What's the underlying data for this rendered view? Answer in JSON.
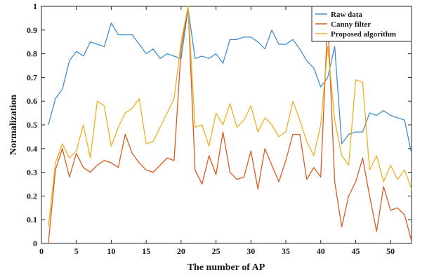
{
  "chart_data": {
    "type": "line",
    "xlabel": "The number of AP",
    "ylabel": "Normalization",
    "xlim": [
      0,
      53
    ],
    "ylim": [
      0,
      1
    ],
    "x_ticks": [
      0,
      5,
      10,
      15,
      20,
      25,
      30,
      35,
      40,
      45,
      50
    ],
    "y_ticks": [
      0,
      0.1,
      0.2,
      0.3,
      0.4,
      0.5,
      0.6,
      0.7,
      0.8,
      0.9,
      1
    ],
    "y_tick_labels": [
      "0",
      "0.1",
      "0.2",
      "0.3",
      "0.4",
      "0.5",
      "0.6",
      "0.7",
      "0.8",
      "0.9",
      "1"
    ],
    "grid": false,
    "legend_position": "top-right",
    "x": [
      1,
      2,
      3,
      4,
      5,
      6,
      7,
      8,
      9,
      10,
      11,
      12,
      13,
      14,
      15,
      16,
      17,
      18,
      19,
      20,
      21,
      22,
      23,
      24,
      25,
      26,
      27,
      28,
      29,
      30,
      31,
      32,
      33,
      34,
      35,
      36,
      37,
      38,
      39,
      40,
      41,
      42,
      43,
      44,
      45,
      46,
      47,
      48,
      49,
      50,
      51,
      52,
      53
    ],
    "series": [
      {
        "name": "Raw data",
        "color": "#3f8fd0",
        "values": [
          0.5,
          0.61,
          0.65,
          0.77,
          0.81,
          0.79,
          0.85,
          0.84,
          0.83,
          0.93,
          0.88,
          0.88,
          0.88,
          0.84,
          0.8,
          0.82,
          0.78,
          0.8,
          0.79,
          0.78,
          0.99,
          0.78,
          0.79,
          0.78,
          0.8,
          0.76,
          0.86,
          0.86,
          0.87,
          0.87,
          0.85,
          0.82,
          0.9,
          0.84,
          0.84,
          0.86,
          0.82,
          0.77,
          0.74,
          0.66,
          0.7,
          0.83,
          0.42,
          0.46,
          0.47,
          0.47,
          0.55,
          0.54,
          0.56,
          0.54,
          0.53,
          0.52,
          0.38
        ]
      },
      {
        "name": "Canny filter",
        "color": "#d95a1f",
        "values": [
          0.0,
          0.31,
          0.4,
          0.28,
          0.38,
          0.32,
          0.3,
          0.33,
          0.35,
          0.34,
          0.32,
          0.46,
          0.38,
          0.34,
          0.31,
          0.3,
          0.33,
          0.36,
          0.35,
          0.82,
          1.0,
          0.31,
          0.25,
          0.37,
          0.29,
          0.47,
          0.3,
          0.27,
          0.28,
          0.39,
          0.23,
          0.4,
          0.33,
          0.26,
          0.35,
          0.46,
          0.46,
          0.27,
          0.32,
          0.28,
          0.95,
          0.26,
          0.07,
          0.2,
          0.26,
          0.36,
          0.2,
          0.05,
          0.24,
          0.14,
          0.15,
          0.12,
          0.01
        ]
      },
      {
        "name": "Proposed algorithm",
        "color": "#edb120",
        "values": [
          0.07,
          0.34,
          0.42,
          0.36,
          0.39,
          0.5,
          0.36,
          0.6,
          0.58,
          0.41,
          0.49,
          0.55,
          0.57,
          0.61,
          0.42,
          0.43,
          0.49,
          0.55,
          0.61,
          0.85,
          1.0,
          0.49,
          0.5,
          0.41,
          0.55,
          0.5,
          0.59,
          0.49,
          0.52,
          0.58,
          0.47,
          0.53,
          0.5,
          0.45,
          0.47,
          0.6,
          0.52,
          0.43,
          0.37,
          0.5,
          0.83,
          0.52,
          0.37,
          0.33,
          0.69,
          0.68,
          0.31,
          0.37,
          0.26,
          0.33,
          0.27,
          0.31,
          0.23
        ]
      }
    ]
  }
}
